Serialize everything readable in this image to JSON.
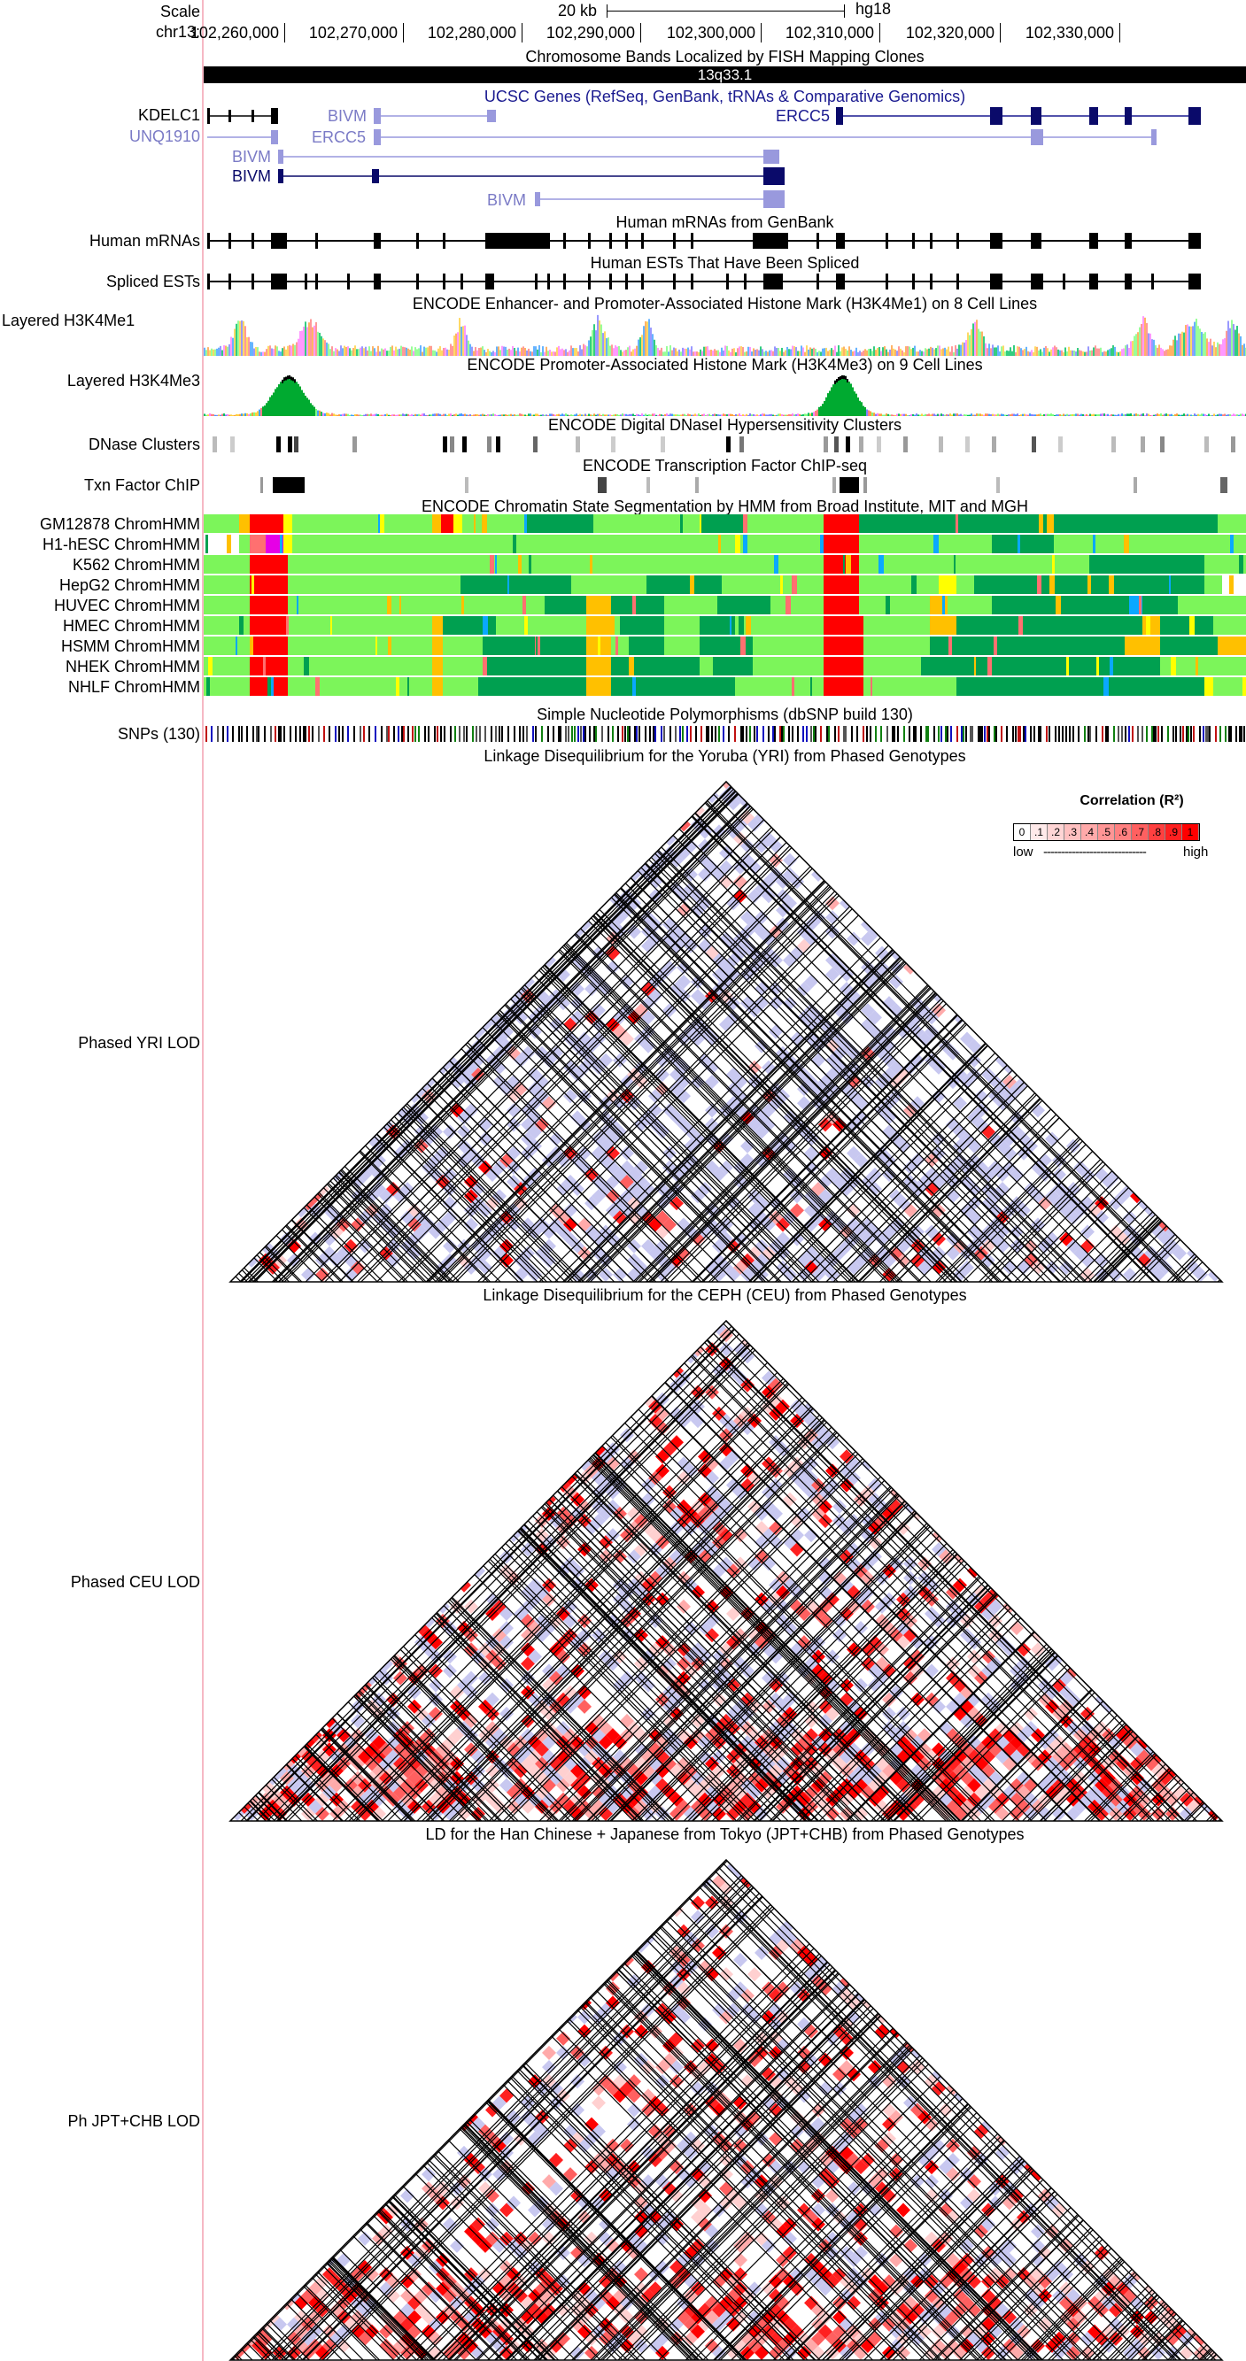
{
  "browser": {
    "scale_label": "Scale",
    "scale_value": "20 kb",
    "assembly": "hg18",
    "chrom_label": "chr13:",
    "ruler_ticks": [
      "102,260,000",
      "102,270,000",
      "102,280,000",
      "102,290,000",
      "102,300,000",
      "102,310,000",
      "102,320,000",
      "102,330,000"
    ]
  },
  "tracks": {
    "bands": {
      "title": "Chromosome Bands Localized by FISH Mapping Clones",
      "band_name": "13q33.1"
    },
    "ucsc_genes": {
      "title": "UCSC Genes (RefSeq, GenBank, tRNAs & Comparative Genomics)",
      "row_labels": [
        "KDELC1",
        "UNQ1910"
      ],
      "gene_names": [
        "BIVM",
        "ERCC5",
        "ERCC5",
        "BIVM",
        "BIVM",
        "BIVM"
      ]
    },
    "mrna": {
      "title": "Human mRNAs from GenBank",
      "label": "Human mRNAs"
    },
    "ests": {
      "title": "Human ESTs That Have Been Spliced",
      "label": "Spliced ESTs"
    },
    "h3k4me1": {
      "title": "ENCODE Enhancer- and Promoter-Associated Histone Mark (H3K4Me1) on 8 Cell Lines",
      "label": "Layered H3K4Me1"
    },
    "h3k4me3": {
      "title": "ENCODE Promoter-Associated Histone Mark (H3K4Me3) on 9 Cell Lines",
      "label": "Layered H3K4Me3"
    },
    "dnase": {
      "title": "ENCODE Digital DNaseI Hypersensitivity Clusters",
      "label": "DNase Clusters"
    },
    "txn": {
      "title": "ENCODE Transcription Factor ChIP-seq",
      "label": "Txn Factor ChIP"
    },
    "chromhmm": {
      "title": "ENCODE Chromatin State Segmentation by HMM from Broad Institute, MIT and MGH",
      "labels": [
        "GM12878 ChromHMM",
        "H1-hESC ChromHMM",
        "K562 ChromHMM",
        "HepG2 ChromHMM",
        "HUVEC ChromHMM",
        "HMEC ChromHMM",
        "HSMM ChromHMM",
        "NHEK ChromHMM",
        "NHLF ChromHMM"
      ],
      "colors": {
        "strong_tx": "#00A050",
        "weak_tx": "#7CF55A",
        "promoter": "#FF0000",
        "weak_promoter": "#FF7070",
        "enhancer": "#FFC000",
        "weak_enh": "#FFFF00",
        "poised": "#E600E6",
        "insulator": "#0AA8FF"
      }
    },
    "snps": {
      "title": "Simple Nucleotide Polymorphisms (dbSNP build 130)",
      "label": "SNPs (130)"
    },
    "ld_yri": {
      "title": "Linkage Disequilibrium for the Yoruba (YRI) from Phased Genotypes",
      "label": "Phased YRI LOD"
    },
    "ld_ceu": {
      "title": "Linkage Disequilibrium for the CEPH (CEU) from Phased Genotypes",
      "label": "Phased CEU LOD"
    },
    "ld_jpt": {
      "title": "LD for the Han Chinese + Japanese from Tokyo (JPT+CHB) from Phased Genotypes",
      "label": "Ph JPT+CHB LOD"
    }
  },
  "legend": {
    "title": "Correlation  (R²)",
    "cells": [
      "0",
      ".1",
      ".2",
      ".3",
      ".4",
      ".5",
      ".6",
      ".7",
      ".8",
      ".9",
      "1"
    ],
    "low": "low",
    "dashes": "-----------------------------",
    "high": "high"
  }
}
